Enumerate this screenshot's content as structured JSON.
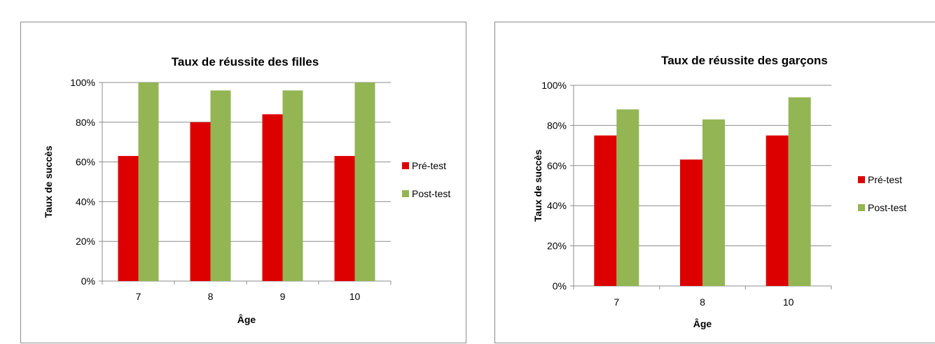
{
  "chart_data": [
    {
      "type": "bar",
      "title": "Taux de réussite des filles",
      "xlabel": "Âge",
      "ylabel": "Taux de succès",
      "categories": [
        "7",
        "8",
        "9",
        "10"
      ],
      "series": [
        {
          "name": "Pré-test",
          "color": "#dd0000",
          "values": [
            63,
            80,
            84,
            63
          ]
        },
        {
          "name": "Post-test",
          "color": "#93b553",
          "values": [
            100,
            96,
            96,
            100
          ]
        }
      ],
      "ylim": [
        0,
        100
      ],
      "yticks": [
        0,
        20,
        40,
        60,
        80,
        100
      ],
      "ytick_labels": [
        "0%",
        "20%",
        "40%",
        "60%",
        "80%",
        "100%"
      ],
      "grid": true,
      "legend_position": "right"
    },
    {
      "type": "bar",
      "title": "Taux de réussite des garçons",
      "xlabel": "Âge",
      "ylabel": "Taux de succès",
      "categories": [
        "7",
        "8",
        "10"
      ],
      "series": [
        {
          "name": "Pré-test",
          "color": "#dd0000",
          "values": [
            75,
            63,
            75
          ]
        },
        {
          "name": "Post-test",
          "color": "#93b553",
          "values": [
            88,
            83,
            94
          ]
        }
      ],
      "ylim": [
        0,
        100
      ],
      "yticks": [
        0,
        20,
        40,
        60,
        80,
        100
      ],
      "ytick_labels": [
        "0%",
        "20%",
        "40%",
        "60%",
        "80%",
        "100%"
      ],
      "grid": true,
      "legend_position": "right"
    }
  ]
}
